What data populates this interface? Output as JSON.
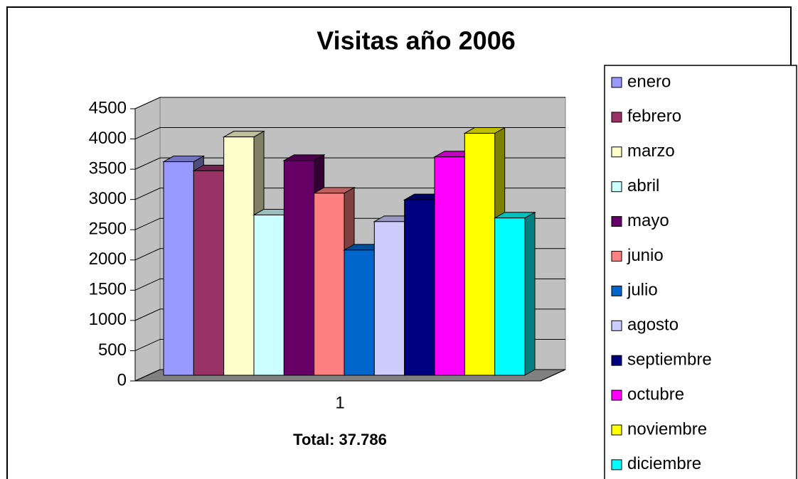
{
  "chart_data": {
    "type": "bar3d",
    "title": "Visitas año 2006",
    "annotation": "Total: 37.786",
    "categories": [
      "1"
    ],
    "series": [
      {
        "name": "enero",
        "color": "#9999ff",
        "values": [
          3530
        ]
      },
      {
        "name": "febrero",
        "color": "#993366",
        "values": [
          3380
        ]
      },
      {
        "name": "marzo",
        "color": "#ffffcc",
        "values": [
          3940
        ]
      },
      {
        "name": "abril",
        "color": "#ccffff",
        "values": [
          2650
        ]
      },
      {
        "name": "mayo",
        "color": "#660066",
        "values": [
          3550
        ]
      },
      {
        "name": "junio",
        "color": "#ff8080",
        "values": [
          3010
        ]
      },
      {
        "name": "julio",
        "color": "#0066cc",
        "values": [
          2070
        ]
      },
      {
        "name": "agosto",
        "color": "#ccccff",
        "values": [
          2540
        ]
      },
      {
        "name": "septiembre",
        "color": "#000080",
        "values": [
          2900
        ]
      },
      {
        "name": "octubre",
        "color": "#ff00ff",
        "values": [
          3610
        ]
      },
      {
        "name": "noviembre",
        "color": "#ffff00",
        "values": [
          4000
        ]
      },
      {
        "name": "diciembre",
        "color": "#00ffff",
        "values": [
          2600
        ]
      }
    ],
    "ylim": [
      0,
      4500
    ],
    "yticks": [
      0,
      500,
      1000,
      1500,
      2000,
      2500,
      3000,
      3500,
      4000,
      4500
    ],
    "grid": true,
    "legend": "right"
  }
}
